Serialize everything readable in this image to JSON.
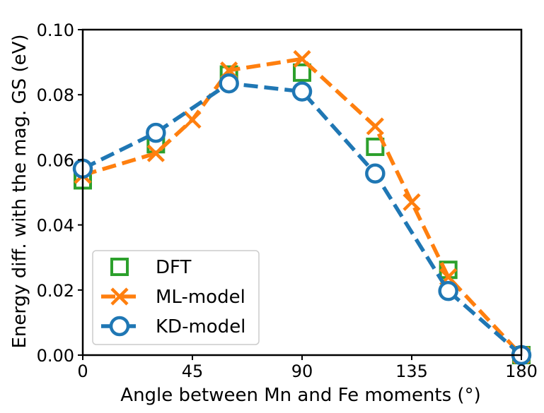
{
  "chart_data": {
    "type": "line",
    "title": "",
    "xlabel": "Angle between Mn and Fe moments (°)",
    "ylabel": "Energy diff. with the mag. GS (eV)",
    "xlim": [
      0,
      180
    ],
    "ylim": [
      0,
      0.1
    ],
    "xticks": [
      0,
      45,
      90,
      135,
      180
    ],
    "xtick_labels": [
      "0",
      "45",
      "90",
      "135",
      "180"
    ],
    "yticks": [
      0,
      0.02,
      0.04,
      0.06,
      0.08,
      0.1
    ],
    "ytick_labels": [
      "0.00",
      "0.02",
      "0.04",
      "0.06",
      "0.08",
      "0.10"
    ],
    "grid": false,
    "legend_position": "bottom-left",
    "series": [
      {
        "name": "DFT",
        "color": "#2ca02c",
        "marker": "square-open",
        "line": "none",
        "x": [
          0,
          30,
          60,
          90,
          120,
          150,
          180
        ],
        "y": [
          0.0537,
          0.0648,
          0.0862,
          0.0868,
          0.064,
          0.0262,
          0.0
        ]
      },
      {
        "name": "ML-model",
        "color": "#ff7f0e",
        "marker": "x",
        "line": "dashed",
        "x": [
          0,
          30,
          45,
          60,
          90,
          120,
          135,
          150,
          180
        ],
        "y": [
          0.0553,
          0.062,
          0.0723,
          0.0875,
          0.091,
          0.0703,
          0.047,
          0.024,
          0.0
        ]
      },
      {
        "name": "KD-model",
        "color": "#1f77b4",
        "marker": "circle-open",
        "line": "dashed",
        "x": [
          0,
          30,
          60,
          90,
          120,
          150,
          180
        ],
        "y": [
          0.0573,
          0.0683,
          0.0835,
          0.081,
          0.0558,
          0.0197,
          0.0
        ]
      }
    ]
  }
}
